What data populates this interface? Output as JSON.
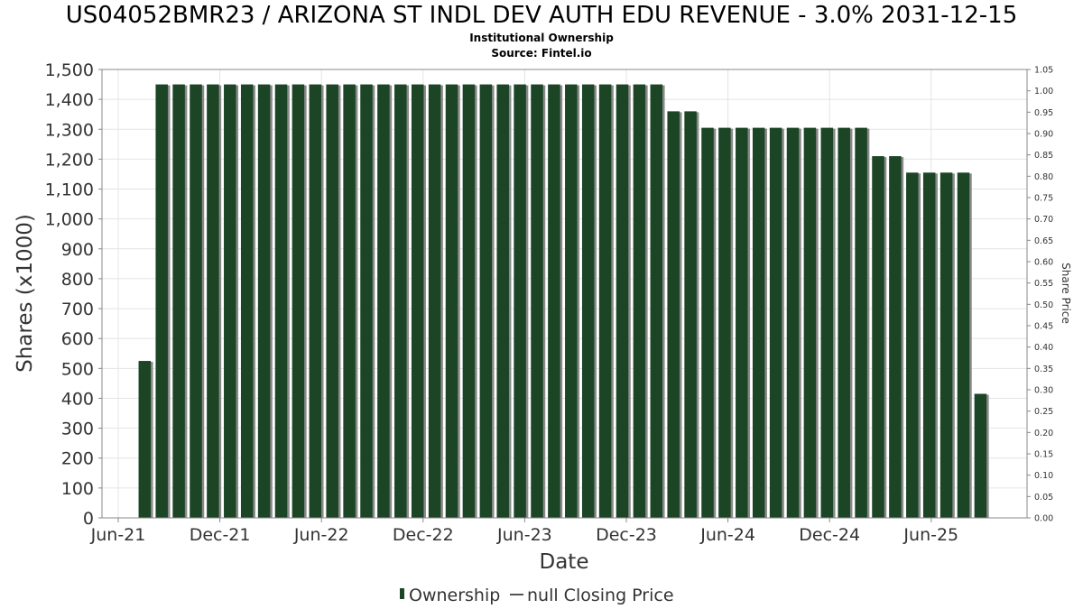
{
  "chart_data": {
    "type": "bar",
    "title": "US04052BMR23 / ARIZONA ST INDL DEV AUTH EDU REVENUE - 3.0% 2031-12-15",
    "subtitle": "Institutional Ownership",
    "source": "Source: Fintel.io",
    "xlabel": "Date",
    "ylabel": "Shares (x1000)",
    "y2label": "Share Price",
    "ylim": [
      0,
      1500
    ],
    "y2lim": [
      0,
      1.05
    ],
    "x_tick_labels": [
      "Jun-21",
      "Dec-21",
      "Jun-22",
      "Dec-22",
      "Jun-23",
      "Dec-23",
      "Jun-24",
      "Dec-24",
      "Jun-25"
    ],
    "y_tick_labels": [
      "0",
      "100",
      "200",
      "300",
      "400",
      "500",
      "600",
      "700",
      "800",
      "900",
      "1,000",
      "1,100",
      "1,200",
      "1,300",
      "1,400",
      "1,500"
    ],
    "y2_tick_labels": [
      "0.00",
      "0.05",
      "0.10",
      "0.15",
      "0.20",
      "0.25",
      "0.30",
      "0.35",
      "0.40",
      "0.45",
      "0.50",
      "0.55",
      "0.60",
      "0.65",
      "0.70",
      "0.75",
      "0.80",
      "0.85",
      "0.90",
      "0.95",
      "1.00",
      "1.05"
    ],
    "grid": true,
    "legend_position": "bottom",
    "series": [
      {
        "name": "Ownership",
        "color": "#1b4525",
        "values": [
          0,
          0,
          525,
          1450,
          1450,
          1450,
          1450,
          1450,
          1450,
          1450,
          1450,
          1450,
          1450,
          1450,
          1450,
          1450,
          1450,
          1450,
          1450,
          1450,
          1450,
          1450,
          1450,
          1450,
          1450,
          1450,
          1450,
          1450,
          1450,
          1450,
          1450,
          1450,
          1450,
          1360,
          1360,
          1305,
          1305,
          1305,
          1305,
          1305,
          1305,
          1305,
          1305,
          1305,
          1305,
          1210,
          1210,
          1155,
          1155,
          1155,
          1155,
          415
        ]
      },
      {
        "name": "null Closing Price",
        "color": "#555555",
        "values": []
      }
    ]
  }
}
